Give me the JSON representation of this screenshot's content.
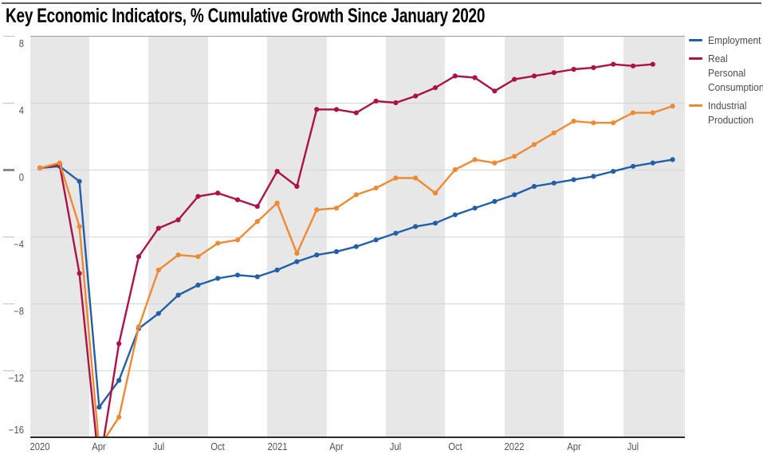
{
  "page": {
    "title": "Key Economic Indicators, % Cumulative Growth Since January 2020"
  },
  "chart_data": {
    "type": "line",
    "title": "Key Economic Indicators, % Cumulative Growth Since January 2020",
    "ylabel": "% cumulative growth since January 2020",
    "ylim": [
      -16,
      8
    ],
    "grid": "horizontal",
    "background_bands": "alternating gray quarters (Q1/Q3 shaded)",
    "legend_position": "right",
    "x": [
      "Jan 2020",
      "Feb 2020",
      "Mar 2020",
      "Apr 2020",
      "May 2020",
      "Jun 2020",
      "Jul 2020",
      "Aug 2020",
      "Sep 2020",
      "Oct 2020",
      "Nov 2020",
      "Dec 2020",
      "Jan 2021",
      "Feb 2021",
      "Mar 2021",
      "Apr 2021",
      "May 2021",
      "Jun 2021",
      "Jul 2021",
      "Aug 2021",
      "Sep 2021",
      "Oct 2021",
      "Nov 2021",
      "Dec 2021",
      "Jan 2022",
      "Feb 2022",
      "Mar 2022",
      "Apr 2022",
      "May 2022",
      "Jun 2022",
      "Jul 2022",
      "Aug 2022",
      "Sep 2022"
    ],
    "x_ticks": [
      {
        "label": "2020",
        "month": 0
      },
      {
        "label": "Apr",
        "month": 3
      },
      {
        "label": "Jul",
        "month": 6
      },
      {
        "label": "Oct",
        "month": 9
      },
      {
        "label": "2021",
        "month": 12
      },
      {
        "label": "Apr",
        "month": 15
      },
      {
        "label": "Jul",
        "month": 18
      },
      {
        "label": "Oct",
        "month": 21
      },
      {
        "label": "2022",
        "month": 24
      },
      {
        "label": "Apr",
        "month": 27
      },
      {
        "label": "Jul",
        "month": 30
      }
    ],
    "y_ticks": [
      {
        "label": "8",
        "value": 8
      },
      {
        "label": "4",
        "value": 4
      },
      {
        "label": "0",
        "value": 0
      },
      {
        "label": "−4",
        "value": -4
      },
      {
        "label": "−8",
        "value": -8
      },
      {
        "label": "−12",
        "value": -12
      },
      {
        "label": "−16",
        "value": -16
      }
    ],
    "shaded_quarter_start_months": [
      0,
      6,
      12,
      18,
      24,
      30
    ],
    "series": [
      {
        "name": "Employment",
        "color": "#235fa8",
        "start_month": 0,
        "values": [
          0.1,
          0.2,
          -0.7,
          -14.2,
          -12.6,
          -9.5,
          -8.6,
          -7.5,
          -6.9,
          -6.5,
          -6.3,
          -6.4,
          -6.0,
          -5.5,
          -5.1,
          -4.9,
          -4.6,
          -4.2,
          -3.8,
          -3.4,
          -3.2,
          -2.7,
          -2.3,
          -1.9,
          -1.5,
          -1.0,
          -0.8,
          -0.6,
          -0.4,
          -0.1,
          0.2,
          0.4,
          0.6
        ]
      },
      {
        "name": "Real Personal Consumption",
        "color": "#ad1245",
        "start_month": 0,
        "values": [
          0.1,
          0.3,
          -6.2,
          -17.8,
          -10.4,
          -5.2,
          -3.5,
          -3.0,
          -1.6,
          -1.4,
          -1.8,
          -2.2,
          -0.1,
          -1.0,
          3.6,
          3.6,
          3.4,
          4.1,
          4.0,
          4.4,
          4.9,
          5.6,
          5.5,
          4.7,
          5.4,
          5.6,
          5.8,
          6.0,
          6.1,
          6.3,
          6.2,
          6.3
        ]
      },
      {
        "name": "Industrial Production",
        "color": "#ef8a33",
        "start_month": 0,
        "values": [
          0.1,
          0.4,
          -3.4,
          -16.6,
          -14.8,
          -9.4,
          -6.0,
          -5.1,
          -5.2,
          -4.4,
          -4.2,
          -3.1,
          -2.0,
          -5.0,
          -2.4,
          -2.3,
          -1.5,
          -1.1,
          -0.5,
          -0.5,
          -1.4,
          0.0,
          0.6,
          0.4,
          0.8,
          1.5,
          2.2,
          2.9,
          2.8,
          2.8,
          3.4,
          3.4,
          3.8
        ]
      }
    ]
  }
}
